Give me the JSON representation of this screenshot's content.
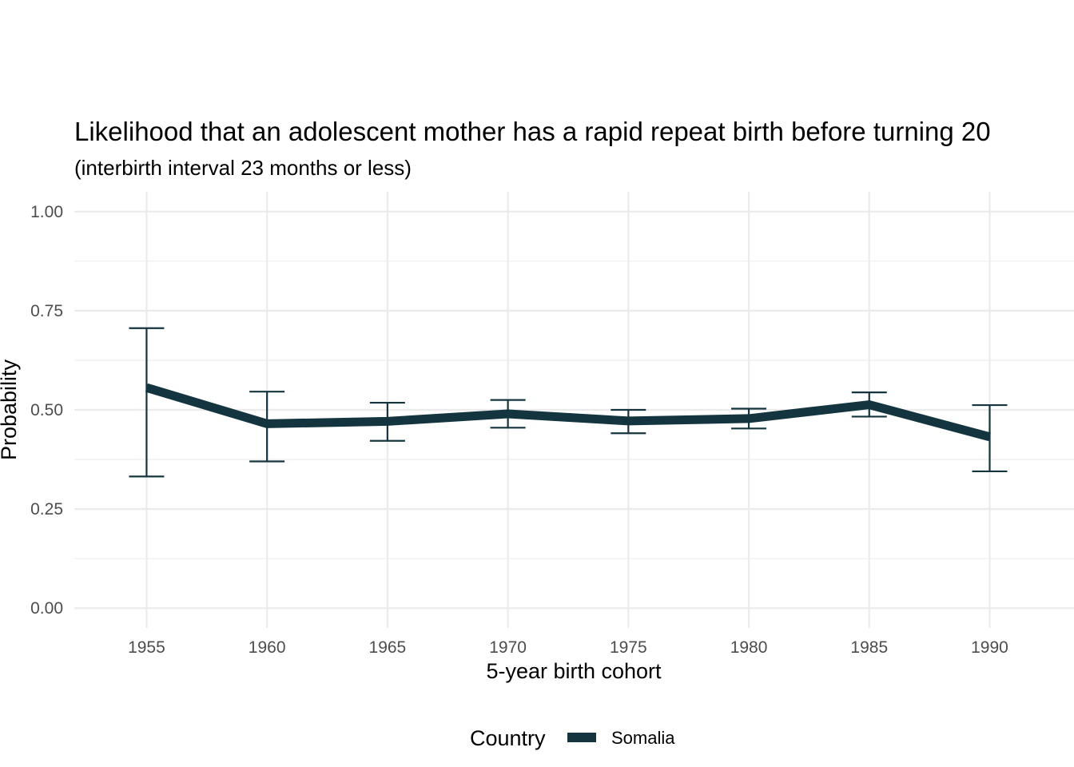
{
  "chart_data": {
    "type": "line",
    "title": "Likelihood that an adolescent mother has a rapid repeat birth before turning 20",
    "subtitle": "(interbirth interval 23 months or less)",
    "xlabel": "5-year birth cohort",
    "ylabel": "Probability",
    "x": [
      1955,
      1960,
      1965,
      1970,
      1975,
      1980,
      1985,
      1990
    ],
    "xlim": [
      1952,
      1993.5
    ],
    "ylim": [
      -0.05,
      1.05
    ],
    "yticks": [
      0,
      0.25,
      0.5,
      0.75,
      1
    ],
    "ytick_labels": [
      "0.00",
      "0.25",
      "0.50",
      "0.75",
      "1.00"
    ],
    "xtick_labels": [
      "1955",
      "1960",
      "1965",
      "1970",
      "1975",
      "1980",
      "1985",
      "1990"
    ],
    "grid": true,
    "legend": {
      "title": "Country",
      "position": "bottom"
    },
    "series": [
      {
        "name": "Somalia",
        "color": "#14353f",
        "values": [
          0.556,
          0.465,
          0.471,
          0.49,
          0.472,
          0.478,
          0.513,
          0.432
        ],
        "lower": [
          0.332,
          0.37,
          0.422,
          0.455,
          0.441,
          0.453,
          0.483,
          0.345
        ],
        "upper": [
          0.706,
          0.546,
          0.518,
          0.525,
          0.5,
          0.503,
          0.544,
          0.512
        ]
      }
    ]
  }
}
